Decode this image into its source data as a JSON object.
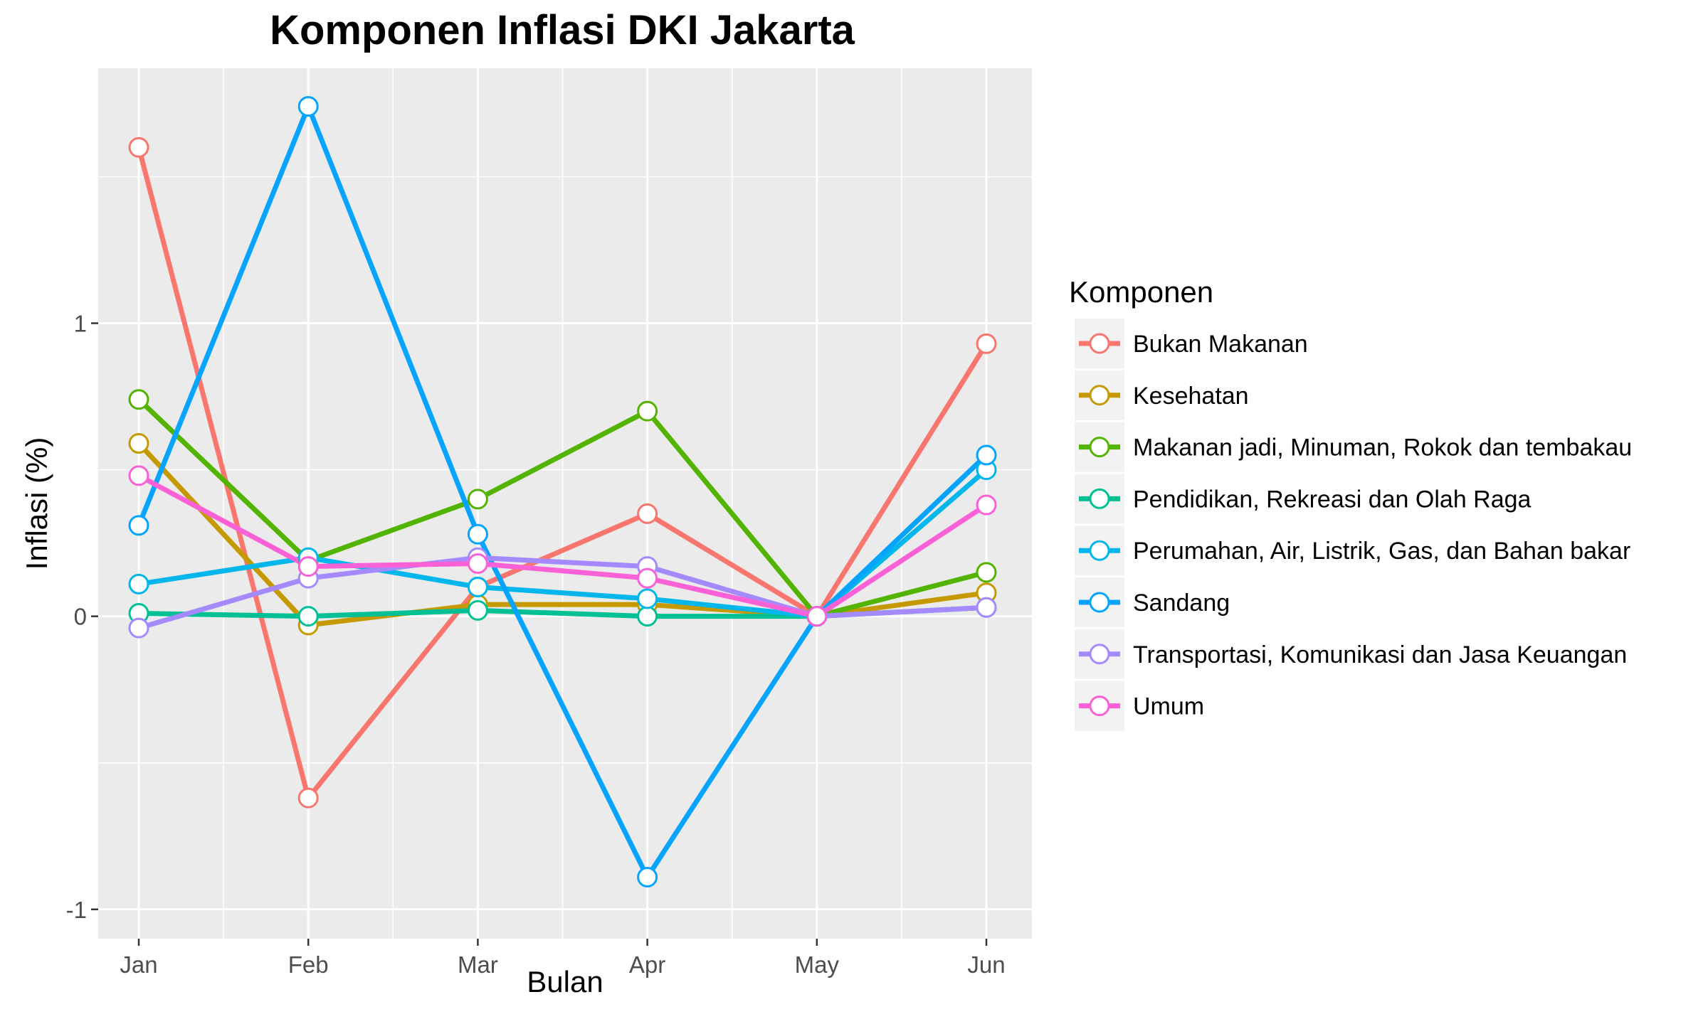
{
  "chart_data": {
    "type": "line",
    "title": "Komponen Inflasi DKI Jakarta",
    "xlabel": "Bulan",
    "ylabel": "Inflasi (%)",
    "categories": [
      "Jan",
      "Feb",
      "Mar",
      "Apr",
      "May",
      "Jun"
    ],
    "y_ticks": [
      -1,
      0,
      1
    ],
    "y_tick_labels": [
      "-1",
      "0",
      "1"
    ],
    "ylim": [
      -1.1,
      1.87
    ],
    "grid": true,
    "legend_title": "Komponen",
    "legend_position": "right",
    "series": [
      {
        "name": "Bukan Makanan",
        "color": "#F8766D",
        "values": [
          1.6,
          -0.62,
          0.1,
          0.35,
          0.0,
          0.93
        ]
      },
      {
        "name": "Kesehatan",
        "color": "#C49A00",
        "values": [
          0.59,
          -0.03,
          0.04,
          0.04,
          0.0,
          0.08
        ]
      },
      {
        "name": "Makanan jadi, Minuman, Rokok dan tembakau",
        "color": "#53B400",
        "values": [
          0.74,
          0.19,
          0.4,
          0.7,
          0.0,
          0.15
        ]
      },
      {
        "name": "Pendidikan, Rekreasi dan Olah Raga",
        "color": "#00C094",
        "values": [
          0.01,
          0.0,
          0.02,
          0.0,
          0.0,
          0.03
        ]
      },
      {
        "name": "Perumahan, Air, Listrik, Gas, dan Bahan bakar",
        "color": "#00B6EB",
        "values": [
          0.11,
          0.2,
          0.1,
          0.06,
          0.0,
          0.5
        ]
      },
      {
        "name": "Sandang",
        "color": "#06A4FF",
        "values": [
          0.31,
          1.74,
          0.28,
          -0.89,
          0.0,
          0.55
        ]
      },
      {
        "name": "Transportasi, Komunikasi dan Jasa Keuangan",
        "color": "#A58AFF",
        "values": [
          -0.04,
          0.13,
          0.2,
          0.17,
          0.0,
          0.03
        ]
      },
      {
        "name": "Umum",
        "color": "#FB61D7",
        "values": [
          0.48,
          0.17,
          0.18,
          0.13,
          0.0,
          0.38
        ]
      }
    ]
  }
}
